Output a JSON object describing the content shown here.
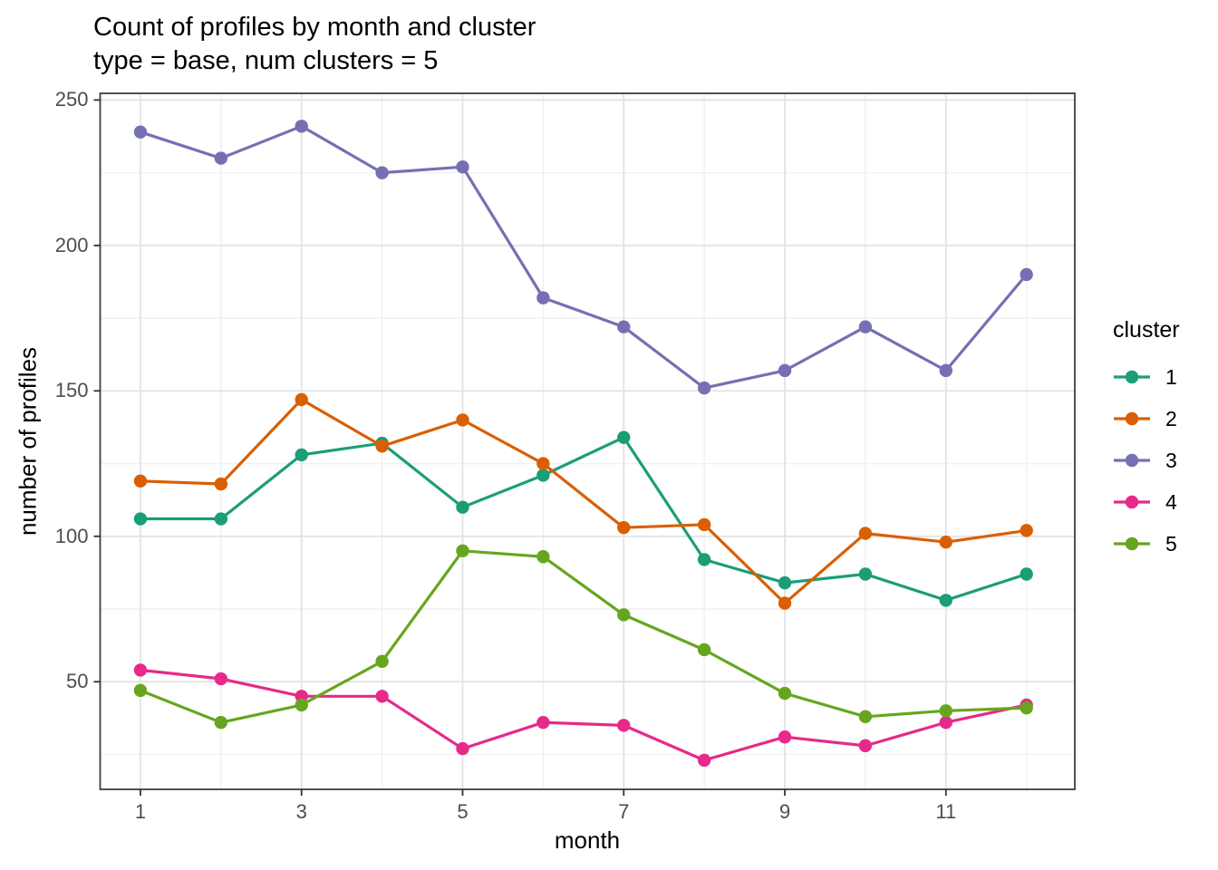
{
  "header": {
    "title": "Count of profiles by month and cluster",
    "subtitle": "type = base, num clusters = 5"
  },
  "chart_data": {
    "type": "line",
    "title": "Count of profiles by month and cluster",
    "subtitle": "type = base, num clusters = 5",
    "xlabel": "month",
    "ylabel": "number of profiles",
    "x": [
      1,
      2,
      3,
      4,
      5,
      6,
      7,
      8,
      9,
      10,
      11,
      12
    ],
    "series": [
      {
        "name": "1",
        "color": "#1B9E77",
        "values": [
          106,
          106,
          128,
          132,
          110,
          121,
          134,
          92,
          84,
          87,
          78,
          87
        ]
      },
      {
        "name": "2",
        "color": "#D95F02",
        "values": [
          119,
          118,
          147,
          131,
          140,
          125,
          103,
          104,
          77,
          101,
          98,
          102
        ]
      },
      {
        "name": "3",
        "color": "#7570B3",
        "values": [
          239,
          230,
          241,
          225,
          227,
          182,
          172,
          151,
          157,
          172,
          157,
          190
        ]
      },
      {
        "name": "4",
        "color": "#E7298A",
        "values": [
          54,
          51,
          45,
          45,
          27,
          36,
          35,
          23,
          31,
          28,
          36,
          42
        ]
      },
      {
        "name": "5",
        "color": "#66A61E",
        "values": [
          47,
          36,
          42,
          57,
          95,
          93,
          73,
          61,
          46,
          38,
          40,
          41
        ]
      }
    ],
    "x_ticks": [
      1,
      3,
      5,
      7,
      9,
      11
    ],
    "x_minor": [
      2,
      4,
      6,
      8,
      10,
      12
    ],
    "y_ticks": [
      50,
      100,
      150,
      200,
      250
    ],
    "y_minor": [
      25,
      75,
      125,
      175,
      225
    ],
    "xlim": [
      0.5,
      12.6
    ],
    "ylim": [
      13,
      252.3
    ],
    "grid": true,
    "legend": {
      "title": "cluster",
      "position": "right"
    }
  },
  "style": {
    "background": "#ffffff",
    "panel_border": "#3d3d3d",
    "grid_major": "#e4e4e4",
    "grid_minor": "#f1f1f1",
    "tick_color": "#333333",
    "tick_label_color": "#4d4d4d"
  }
}
